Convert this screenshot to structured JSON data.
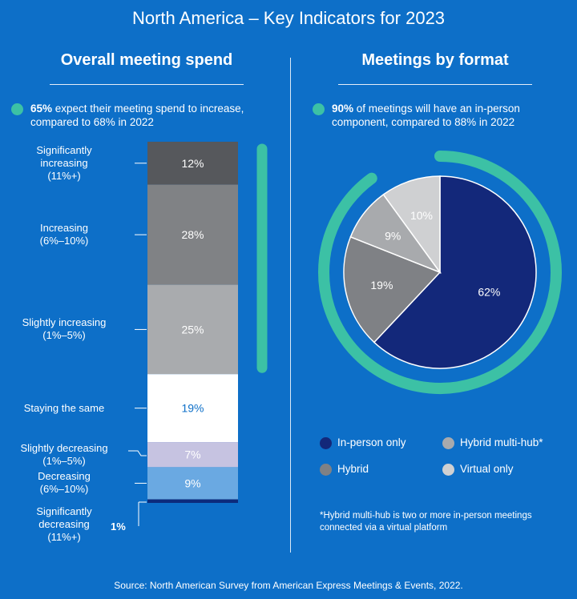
{
  "title": "North America – Key Indicators for 2023",
  "left": {
    "title": "Overall meeting spend",
    "bullet_bold": "65%",
    "bullet_text": " expect their meeting spend to increase, compared to 68% in 2022"
  },
  "right": {
    "title": "Meetings by format",
    "bullet_bold": "90%",
    "bullet_text": " of meetings will have an in-person component, compared to 88% in 2022",
    "footnote": "*Hybrid multi-hub is two or more in-person meetings connected via a virtual platform"
  },
  "source": "Source: North American Survey from American Express Meetings & Events, 2022.",
  "colors": {
    "background": "#0d6fc8",
    "accent": "#3cc1a5"
  },
  "chart_data": [
    {
      "type": "bar",
      "orientation": "stacked-vertical",
      "categories": [
        "Significantly increasing (11%+)",
        "Increasing (6%–10%)",
        "Slightly increasing (1%–5%)",
        "Staying the same",
        "Slightly decreasing (1%–5%)",
        "Decreasing (6%–10%)",
        "Significantly decreasing (11%+)"
      ],
      "label_lines": [
        [
          "Significantly",
          "increasing",
          "(11%+)"
        ],
        [
          "Increasing",
          "(6%–10%)"
        ],
        [
          "Slightly increasing",
          "(1%–5%)"
        ],
        [
          "Staying the same"
        ],
        [
          "Slightly decreasing",
          "(1%–5%)"
        ],
        [
          "Decreasing",
          "(6%–10%)"
        ],
        [
          "Significantly",
          "decreasing",
          "(11%+)"
        ]
      ],
      "values": [
        12,
        28,
        25,
        19,
        7,
        9,
        1
      ],
      "value_labels": [
        "12%",
        "28%",
        "25%",
        "19%",
        "7%",
        "9%",
        "1%"
      ],
      "colors": [
        "#56585c",
        "#808285",
        "#a9abae",
        "#ffffff",
        "#c6c3e1",
        "#6aa9e2",
        "#0c2b7c"
      ],
      "label_colors": [
        "#ffffff",
        "#ffffff",
        "#ffffff",
        "#0d6fc8",
        "#ffffff",
        "#ffffff",
        "#ffffff"
      ]
    },
    {
      "type": "pie",
      "categories": [
        "In-person only",
        "Hybrid",
        "Hybrid multi-hub*",
        "Virtual only"
      ],
      "values": [
        62,
        19,
        9,
        10
      ],
      "value_labels": [
        "62%",
        "19%",
        "9%",
        "10%"
      ],
      "colors": [
        "#13287a",
        "#7f8185",
        "#a8aaad",
        "#cfd0d2"
      ],
      "ring_percent": 90
    }
  ]
}
